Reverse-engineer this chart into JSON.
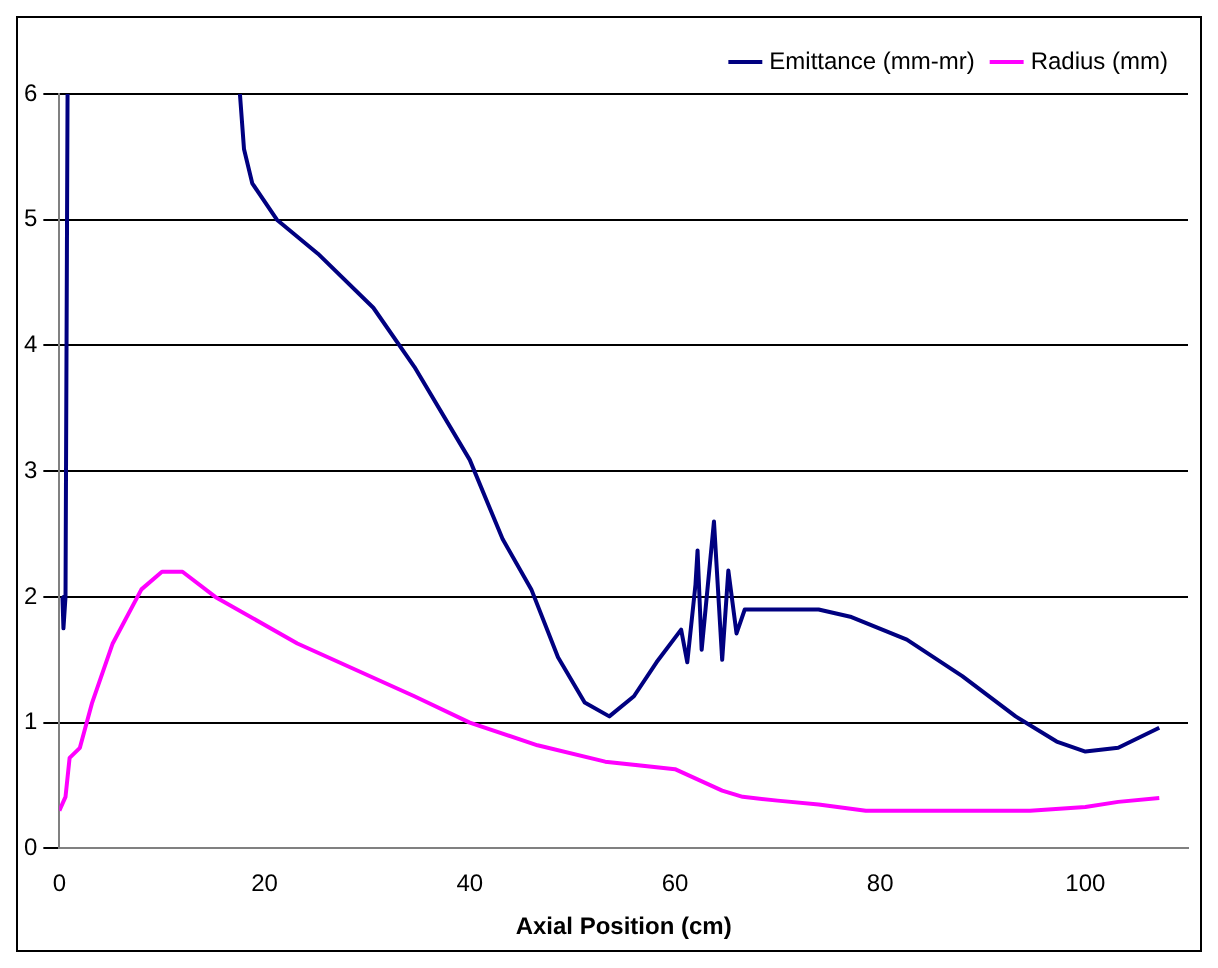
{
  "chart_data": {
    "type": "line",
    "xlabel": "Axial Position (cm)",
    "xlim": [
      0,
      110
    ],
    "xticks": [
      0,
      20,
      40,
      60,
      80,
      100
    ],
    "ylim": [
      0,
      6
    ],
    "yticks": [
      0,
      1,
      2,
      3,
      4,
      5,
      6
    ],
    "grid": "y",
    "legend": "top right",
    "marker": "none",
    "line_style": "solid",
    "series": [
      {
        "name": "Emittance (mm-mr)",
        "color": "#000080",
        "x": [
          0.3,
          0.4,
          0.6,
          0.8,
          null,
          17.6,
          18,
          18.8,
          21.2,
          25.2,
          30.6,
          34.6,
          40,
          43.2,
          46,
          48.6,
          51.2,
          53.6,
          56,
          58.2,
          60.6,
          61.2,
          62,
          62.2,
          62.6,
          63.8,
          64.6,
          65.2,
          66,
          66.8,
          68,
          74,
          77.2,
          82.6,
          88,
          93.2,
          97.2,
          100,
          103.2,
          107.2
        ],
        "values": [
          2.0,
          1.75,
          2.0,
          6.0,
          null,
          6.0,
          5.56,
          5.29,
          5.0,
          4.73,
          4.3,
          3.83,
          3.09,
          2.46,
          2.06,
          1.52,
          1.16,
          1.05,
          1.21,
          1.48,
          1.74,
          1.48,
          2.1,
          2.37,
          1.58,
          2.6,
          1.5,
          2.21,
          1.71,
          1.9,
          1.9,
          1.9,
          1.84,
          1.66,
          1.37,
          1.05,
          0.85,
          0.77,
          0.8,
          0.96
        ]
      },
      {
        "name": "Radius (mm)",
        "color": "#ff00ff",
        "x": [
          0,
          0.6,
          1,
          2,
          3.2,
          5.2,
          8,
          10,
          12,
          15.2,
          23.2,
          34.6,
          40,
          46.6,
          53.2,
          60,
          64.6,
          66.6,
          70,
          74,
          78.6,
          94.6,
          100,
          103.2,
          107.2
        ],
        "values": [
          0.3,
          0.41,
          0.72,
          0.8,
          1.16,
          1.63,
          2.06,
          2.2,
          2.2,
          2.0,
          1.63,
          1.21,
          1.0,
          0.82,
          0.69,
          0.63,
          0.46,
          0.41,
          0.38,
          0.35,
          0.3,
          0.3,
          0.33,
          0.37,
          0.4
        ]
      }
    ]
  }
}
